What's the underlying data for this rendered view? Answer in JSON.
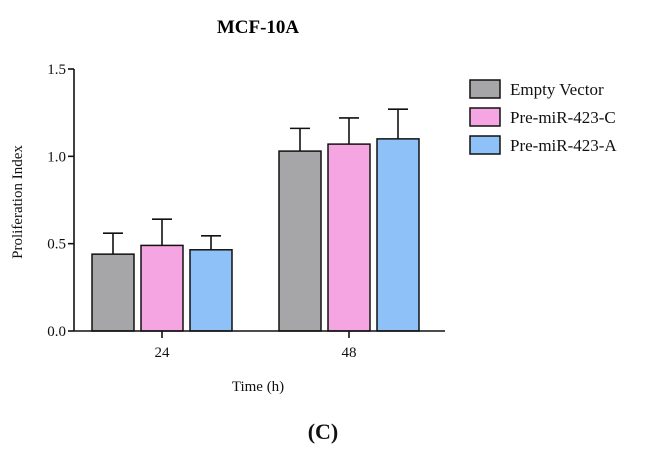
{
  "chart_data": {
    "type": "bar",
    "title": "MCF-10A",
    "xlabel": "Time (h)",
    "ylabel": "Proliferation Index",
    "categories": [
      "24",
      "48"
    ],
    "ylim": [
      0,
      1.5
    ],
    "yticks": [
      "0.0",
      "0.5",
      "1.0",
      "1.5"
    ],
    "error_bars": "upper",
    "legend_position": "right",
    "series": [
      {
        "name": "Empty Vector",
        "color": "#a6a6a8",
        "values": [
          0.44,
          1.03
        ],
        "errors": [
          0.12,
          0.13
        ]
      },
      {
        "name": "Pre-miR-423-C",
        "color": "#f5a6e2",
        "values": [
          0.49,
          1.07
        ],
        "errors": [
          0.15,
          0.15
        ]
      },
      {
        "name": "Pre-miR-423-A",
        "color": "#8fc1f9",
        "values": [
          0.465,
          1.1
        ],
        "errors": [
          0.08,
          0.17
        ]
      }
    ]
  },
  "panel_label": "(C)"
}
